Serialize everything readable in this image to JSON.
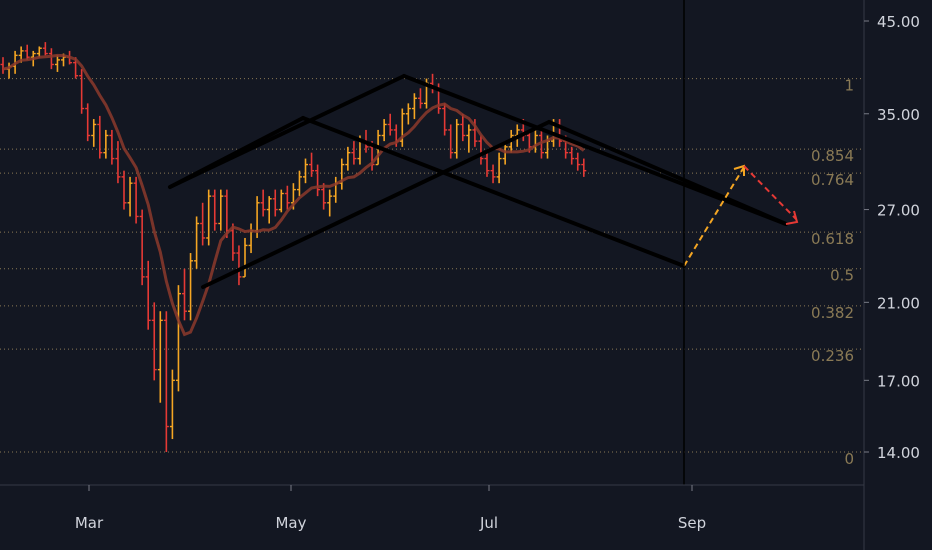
{
  "chart_data": {
    "type": "candlestick",
    "title": "",
    "price_axis": {
      "ticks": [
        {
          "value": 45,
          "label": "45.00"
        },
        {
          "value": 35,
          "label": "35.00"
        },
        {
          "value": 27,
          "label": "27.00"
        },
        {
          "value": 21,
          "label": "21.00"
        },
        {
          "value": 17,
          "label": "17.00"
        },
        {
          "value": 14,
          "label": "14.00"
        }
      ],
      "scale": "log",
      "range": [
        13.3,
        47
      ]
    },
    "time_axis": {
      "ticks": [
        "Mar",
        "May",
        "Jul",
        "Sep"
      ]
    },
    "fib_levels": [
      {
        "ratio": "1",
        "price": 38.5
      },
      {
        "ratio": "0.854",
        "price": 31.8
      },
      {
        "ratio": "0.764",
        "price": 29.8
      },
      {
        "ratio": "0.618",
        "price": 25.4
      },
      {
        "ratio": "0.5",
        "price": 23.0
      },
      {
        "ratio": "0.382",
        "price": 20.8
      },
      {
        "ratio": "0.236",
        "price": 18.5
      },
      {
        "ratio": "0",
        "price": 14.0
      }
    ],
    "colors": {
      "background": "#131722",
      "up_candle": "#f5a623",
      "down_candle": "#e53935",
      "moving_average": "#8c3a2c",
      "fib_line": "#8a7a55",
      "channel": "#000000",
      "projection_up": "#f5a623",
      "projection_down": "#e53935"
    },
    "ohlc": [
      [
        40.0,
        40.8,
        39.0,
        39.5
      ],
      [
        39.5,
        40.2,
        38.5,
        39.8
      ],
      [
        39.8,
        41.5,
        39.0,
        41.0
      ],
      [
        41.0,
        42.0,
        40.2,
        41.5
      ],
      [
        41.5,
        42.2,
        40.5,
        40.8
      ],
      [
        40.8,
        41.5,
        39.8,
        41.2
      ],
      [
        41.2,
        42.0,
        40.8,
        41.8
      ],
      [
        41.8,
        42.5,
        41.0,
        41.2
      ],
      [
        41.2,
        41.8,
        39.5,
        40.0
      ],
      [
        40.0,
        41.0,
        39.2,
        40.5
      ],
      [
        40.5,
        41.2,
        39.8,
        40.8
      ],
      [
        40.8,
        41.5,
        40.0,
        40.2
      ],
      [
        40.2,
        40.8,
        38.5,
        38.8
      ],
      [
        38.8,
        39.5,
        35.0,
        35.5
      ],
      [
        35.5,
        36.0,
        32.5,
        33.0
      ],
      [
        33.0,
        34.5,
        32.0,
        34.0
      ],
      [
        34.0,
        34.8,
        31.0,
        31.5
      ],
      [
        31.5,
        33.5,
        31.0,
        33.0
      ],
      [
        33.0,
        33.5,
        30.5,
        31.0
      ],
      [
        31.0,
        32.5,
        29.0,
        29.5
      ],
      [
        29.5,
        30.0,
        27.0,
        27.5
      ],
      [
        27.5,
        29.5,
        26.5,
        29.0
      ],
      [
        29.0,
        29.5,
        26.0,
        26.5
      ],
      [
        26.5,
        27.0,
        22.0,
        22.5
      ],
      [
        22.5,
        23.5,
        19.5,
        20.0
      ],
      [
        20.0,
        21.0,
        17.0,
        17.5
      ],
      [
        17.5,
        20.5,
        16.0,
        20.0
      ],
      [
        20.0,
        20.5,
        14.0,
        15.0
      ],
      [
        15.0,
        17.5,
        14.5,
        17.0
      ],
      [
        17.0,
        22.0,
        16.5,
        21.5
      ],
      [
        21.5,
        23.0,
        20.0,
        20.5
      ],
      [
        20.5,
        24.0,
        20.0,
        23.5
      ],
      [
        23.5,
        26.5,
        23.0,
        26.0
      ],
      [
        26.0,
        27.5,
        24.5,
        25.0
      ],
      [
        25.0,
        28.5,
        24.5,
        28.0
      ],
      [
        28.0,
        28.5,
        25.5,
        26.0
      ],
      [
        26.0,
        28.5,
        25.5,
        28.0
      ],
      [
        28.0,
        28.5,
        25.0,
        25.5
      ],
      [
        25.5,
        26.0,
        23.5,
        24.0
      ],
      [
        24.0,
        24.5,
        22.0,
        22.5
      ],
      [
        22.5,
        25.0,
        22.5,
        24.5
      ],
      [
        24.5,
        26.0,
        24.0,
        25.5
      ],
      [
        25.5,
        28.0,
        25.0,
        27.5
      ],
      [
        27.5,
        28.5,
        26.5,
        27.0
      ],
      [
        27.0,
        28.0,
        26.0,
        27.8
      ],
      [
        27.8,
        28.5,
        26.5,
        27.0
      ],
      [
        27.0,
        28.5,
        26.8,
        28.2
      ],
      [
        28.2,
        28.8,
        27.0,
        27.5
      ],
      [
        27.5,
        29.0,
        27.0,
        28.5
      ],
      [
        28.5,
        30.0,
        28.0,
        29.5
      ],
      [
        29.5,
        31.0,
        29.0,
        30.5
      ],
      [
        30.5,
        31.5,
        29.5,
        30.0
      ],
      [
        30.0,
        30.5,
        28.0,
        28.5
      ],
      [
        28.5,
        29.0,
        27.0,
        27.5
      ],
      [
        27.5,
        28.5,
        26.5,
        28.0
      ],
      [
        28.0,
        29.5,
        27.5,
        29.0
      ],
      [
        29.0,
        31.0,
        28.5,
        30.5
      ],
      [
        30.5,
        32.0,
        30.0,
        31.5
      ],
      [
        31.5,
        32.5,
        30.5,
        31.0
      ],
      [
        31.0,
        33.0,
        30.5,
        32.5
      ],
      [
        32.5,
        33.5,
        31.5,
        32.0
      ],
      [
        32.0,
        32.5,
        30.0,
        30.5
      ],
      [
        30.5,
        33.5,
        30.5,
        33.0
      ],
      [
        33.0,
        34.5,
        32.5,
        34.0
      ],
      [
        34.0,
        35.0,
        33.0,
        33.5
      ],
      [
        33.5,
        34.0,
        32.0,
        32.5
      ],
      [
        32.5,
        35.5,
        32.0,
        35.0
      ],
      [
        35.0,
        36.0,
        34.0,
        35.5
      ],
      [
        35.5,
        37.0,
        34.5,
        36.5
      ],
      [
        36.5,
        37.5,
        35.5,
        36.0
      ],
      [
        36.0,
        38.5,
        35.5,
        38.0
      ],
      [
        38.0,
        39.0,
        37.0,
        37.5
      ],
      [
        37.5,
        38.0,
        35.0,
        35.5
      ],
      [
        35.5,
        36.0,
        33.0,
        33.5
      ],
      [
        33.5,
        34.0,
        31.0,
        31.5
      ],
      [
        31.5,
        34.5,
        31.0,
        34.0
      ],
      [
        34.0,
        35.0,
        32.5,
        33.0
      ],
      [
        33.0,
        34.0,
        31.5,
        33.5
      ],
      [
        33.5,
        34.5,
        32.0,
        32.5
      ],
      [
        32.5,
        33.0,
        30.5,
        31.0
      ],
      [
        31.0,
        31.5,
        29.5,
        30.0
      ],
      [
        30.0,
        30.5,
        29.0,
        29.5
      ],
      [
        29.5,
        31.5,
        29.0,
        31.0
      ],
      [
        31.0,
        32.5,
        30.5,
        32.0
      ],
      [
        32.0,
        33.5,
        31.5,
        33.0
      ],
      [
        33.0,
        34.0,
        32.0,
        33.5
      ],
      [
        33.5,
        34.5,
        32.5,
        33.0
      ],
      [
        33.0,
        33.5,
        31.5,
        32.0
      ],
      [
        32.0,
        33.5,
        31.5,
        33.0
      ],
      [
        33.0,
        33.5,
        31.0,
        31.5
      ],
      [
        31.5,
        33.0,
        31.0,
        32.5
      ],
      [
        32.5,
        34.5,
        32.0,
        34.0
      ],
      [
        34.0,
        34.5,
        32.0,
        32.5
      ],
      [
        32.5,
        33.0,
        31.0,
        31.5
      ],
      [
        31.5,
        32.0,
        30.5,
        31.0
      ],
      [
        31.0,
        31.5,
        30.0,
        30.5
      ],
      [
        30.5,
        31.0,
        29.5,
        30.0
      ]
    ]
  }
}
